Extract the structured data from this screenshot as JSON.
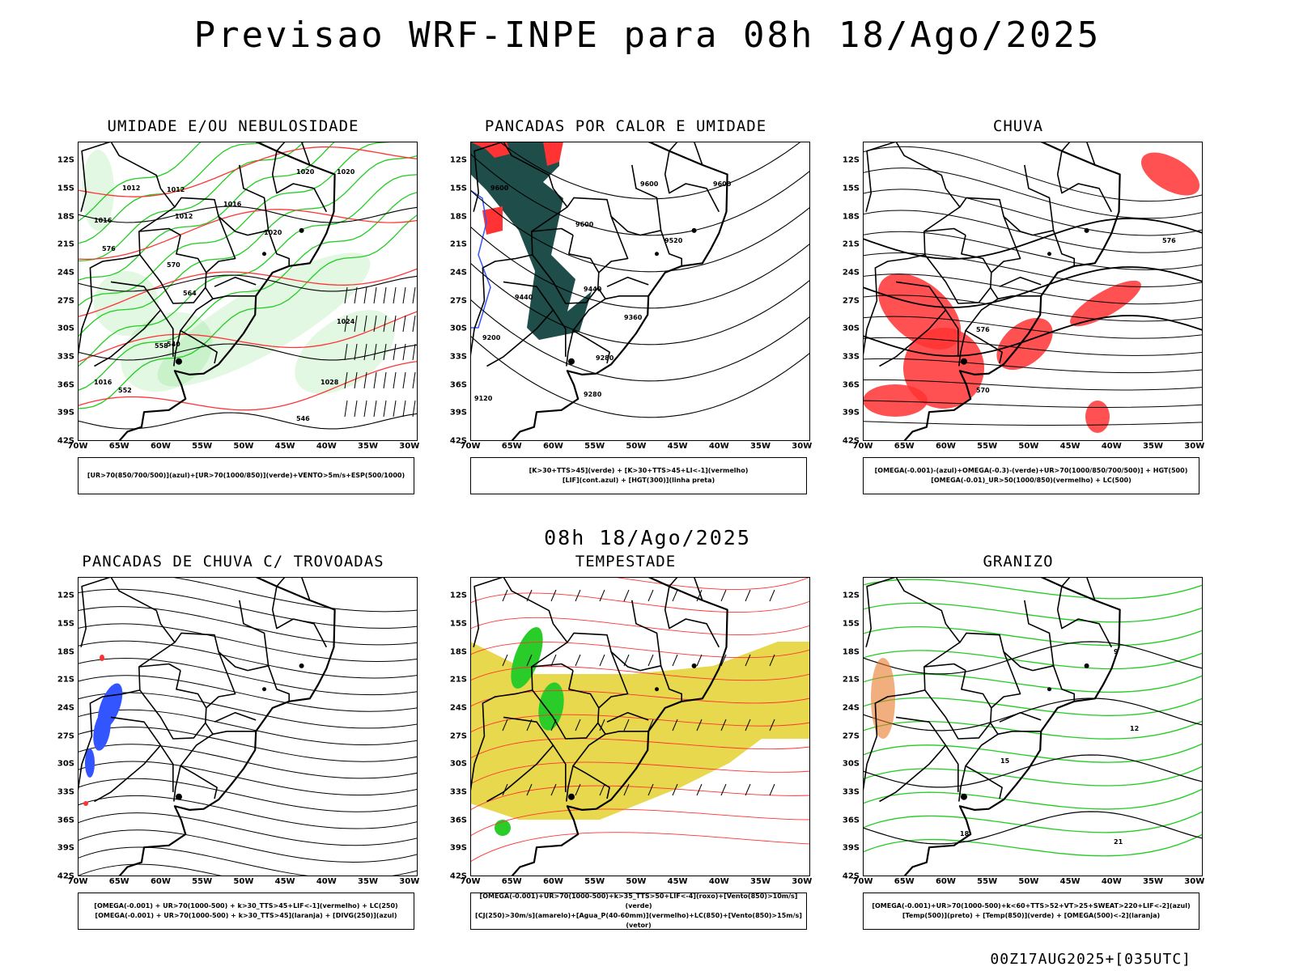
{
  "title": "Previsao WRF-INPE  para 08h 18/Ago/2025",
  "subtitle": "08h 18/Ago/2025",
  "footer": "00Z17AUG2025+[035UTC]",
  "lat_labels": [
    "12S",
    "15S",
    "18S",
    "21S",
    "24S",
    "27S",
    "30S",
    "33S",
    "36S",
    "39S",
    "42S"
  ],
  "lon_labels": [
    "70W",
    "65W",
    "60W",
    "55W",
    "50W",
    "45W",
    "40W",
    "35W",
    "30W"
  ],
  "colors": {
    "green": "#22cc22",
    "red": "#ff3333",
    "blue": "#3355ff",
    "darkteal": "#1f4d4a",
    "yellow": "#e6d43a",
    "orange": "#e87a2a"
  },
  "panels": [
    {
      "title": "UMIDADE E/OU NEBULOSIDADE",
      "legend": [
        "[UR>70(850/700/500)](azul)+[UR>70(1000/850)](verde)+VENTO>5m/s+ESP(500/1000)"
      ],
      "contour_labels": [
        "1012",
        "1012",
        "1012",
        "1016",
        "1016",
        "1020",
        "1020",
        "1020",
        "1024",
        "1028",
        "1016",
        "552",
        "558",
        "564",
        "570",
        "576",
        "540",
        "546"
      ]
    },
    {
      "title": "PANCADAS POR CALOR E UMIDADE",
      "legend": [
        "[K>30+TTS>45](verde) + [K>30+TTS>45+LI<-1](vermelho)",
        "[LIF](cont.azul) + [HGT(300)](linha preta)"
      ],
      "contour_labels": [
        "9600",
        "9600",
        "9600",
        "9600",
        "9520",
        "9440",
        "9440",
        "9360",
        "9280",
        "9280",
        "9200",
        "9120"
      ]
    },
    {
      "title": "CHUVA",
      "legend": [
        "[OMEGA(-0.001)-(azul)+OMEGA(-0.3)-(verde)+UR>70(1000/850/700/500)] + HGT(500)",
        "[OMEGA(-0.01)_UR>50(1000/850)(vermelho) + LC(500)"
      ],
      "contour_labels": [
        "576",
        "576",
        "570"
      ]
    },
    {
      "title": "PANCADAS DE CHUVA C/ TROVOADAS",
      "legend": [
        "[OMEGA(-0.001) + UR>70(1000-500) + k>30_TTS>45+LIF<-1](vermelho) + LC(250)",
        "[OMEGA(-0.001) + UR>70(1000-500) + k>30_TTS>45](laranja) + [DIVG(250)](azul)"
      ],
      "contour_labels": []
    },
    {
      "title": "TEMPESTADE",
      "legend": [
        "[OMEGA(-0.001)+UR>70(1000-500)+k>35_TTS>50+LIF<-4](roxo)+[Vento(850)>10m/s](verde)",
        "[CJ(250)>30m/s](amarelo)+[Agua_P(40-60mm)](vermelho)+LC(850)+[Vento(850)>15m/s](vetor)"
      ],
      "contour_labels": []
    },
    {
      "title": "GRANIZO",
      "legend": [
        "[OMEGA(-0.001)+UR>70(1000-500)+k<60+TTS>52+VT>25+SWEAT>220+LIF<-2](azul)",
        "[Temp(500)](preto) + [Temp(850)](verde) + [OMEGA(500)<-2](laranja)"
      ],
      "contour_labels": [
        "15",
        "18",
        "21",
        "9",
        "12"
      ]
    }
  ]
}
